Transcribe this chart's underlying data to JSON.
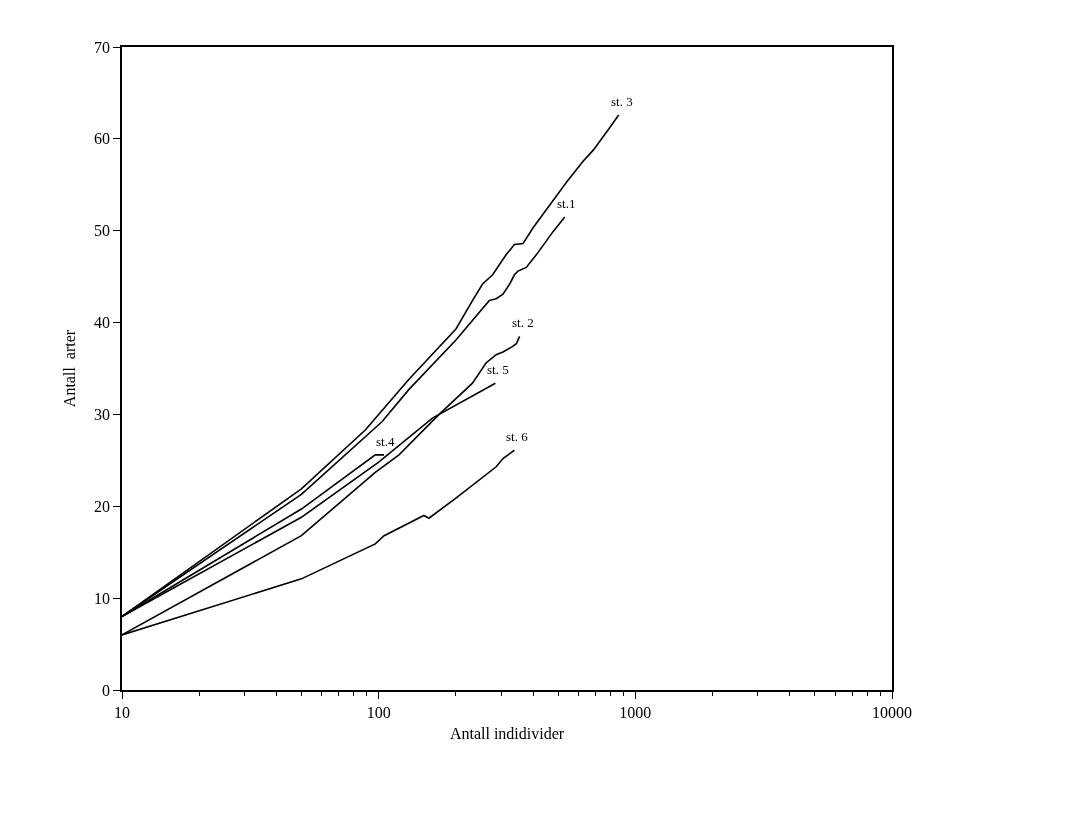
{
  "chart_data": {
    "type": "line",
    "xlabel": "Antall indidivider",
    "ylabel": "Antall  arter",
    "log": "x",
    "xlim": [
      10,
      10000
    ],
    "xticks": [
      10,
      100,
      1000,
      10000
    ],
    "ylim": [
      0,
      70
    ],
    "yticks": [
      0,
      10,
      20,
      30,
      40,
      50,
      60,
      70
    ],
    "legend": false,
    "marker": "none",
    "line_style": "solid",
    "series": [
      {
        "name": "st. 3",
        "color": "#000000",
        "x": [
          10,
          50,
          88.7,
          131,
          200,
          232,
          254,
          278,
          314,
          338,
          365,
          399,
          424,
          540,
          627,
          687,
          798,
          861
        ],
        "values": [
          8,
          21.9,
          28.3,
          33.8,
          39.3,
          42.4,
          44.2,
          45.2,
          47.4,
          48.5,
          48.6,
          50.3,
          51.3,
          55.3,
          57.6,
          58.8,
          61.3,
          62.6
        ]
      },
      {
        "name": "st.1",
        "color": "#000000",
        "x": [
          10,
          50,
          103,
          131,
          200,
          270,
          287,
          305,
          324,
          338,
          349,
          376,
          412,
          478,
          531
        ],
        "values": [
          8,
          21.3,
          29.2,
          32.7,
          38.1,
          42.4,
          42.6,
          43.1,
          44.2,
          45.2,
          45.6,
          46.0,
          47.4,
          49.9,
          51.5
        ]
      },
      {
        "name": "st. 2",
        "color": "#000000",
        "x": [
          10,
          50,
          97,
          120,
          172,
          232,
          262,
          287,
          305,
          333,
          344,
          354
        ],
        "values": [
          6,
          16.8,
          23.7,
          25.6,
          30.0,
          33.4,
          35.6,
          36.5,
          36.8,
          37.4,
          37.7,
          38.5
        ]
      },
      {
        "name": "st.4",
        "color": "#000000",
        "x": [
          10,
          50,
          97,
          105
        ],
        "values": [
          8,
          19.7,
          25.6,
          25.6
        ]
      },
      {
        "name": "st. 5",
        "color": "#000000",
        "x": [
          10,
          50,
          100,
          162,
          285
        ],
        "values": [
          8,
          18.8,
          24.8,
          29.6,
          33.4
        ]
      },
      {
        "name": "st. 6",
        "color": "#000000",
        "x": [
          10,
          50,
          97,
          105,
          150,
          157,
          200,
          287,
          305,
          338
        ],
        "values": [
          6,
          12.1,
          15.9,
          16.8,
          19.0,
          18.7,
          20.9,
          24.3,
          25.2,
          26.1
        ]
      }
    ]
  }
}
